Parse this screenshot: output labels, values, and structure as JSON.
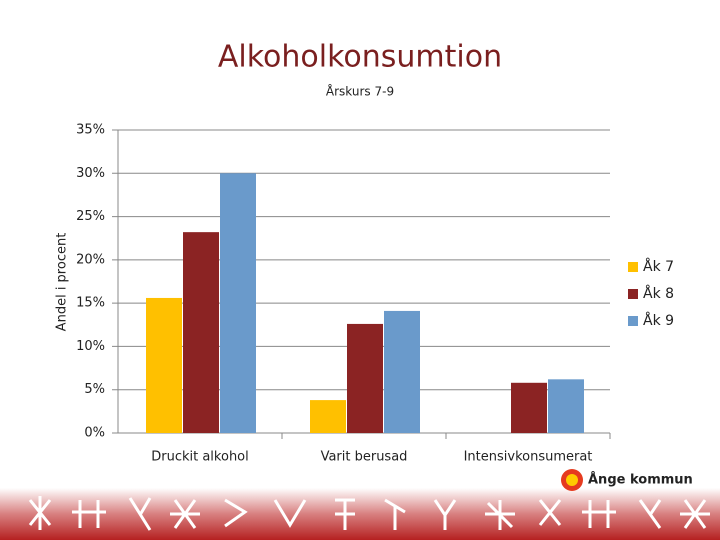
{
  "chart_data": {
    "type": "bar",
    "title": "Alkoholkonsumtion",
    "subtitle": "Årskurs 7-9",
    "y_label": "Andel i procent",
    "categories": [
      "Druckit alkohol",
      "Varit berusad",
      "Intensivkonsumerat"
    ],
    "series": [
      {
        "name": "Åk 7",
        "color": "#ffc000",
        "values": [
          15.6,
          3.8,
          0
        ]
      },
      {
        "name": "Åk 8",
        "color": "#8b2323",
        "values": [
          23.2,
          12.6,
          5.8
        ]
      },
      {
        "name": "Åk 9",
        "color": "#6a9acb",
        "values": [
          30.0,
          14.1,
          6.2
        ]
      }
    ],
    "ylim": [
      0,
      35
    ],
    "yticks": [
      {
        "value": 0,
        "label": "0%"
      },
      {
        "value": 5,
        "label": "5%"
      },
      {
        "value": 10,
        "label": "10%"
      },
      {
        "value": 15,
        "label": "15%"
      },
      {
        "value": 20,
        "label": "20%"
      },
      {
        "value": 25,
        "label": "25%"
      },
      {
        "value": 30,
        "label": "30%"
      },
      {
        "value": 35,
        "label": "35%"
      }
    ],
    "grid": true,
    "legend": "right"
  },
  "footer": {
    "logo": "Ånge kommun"
  }
}
